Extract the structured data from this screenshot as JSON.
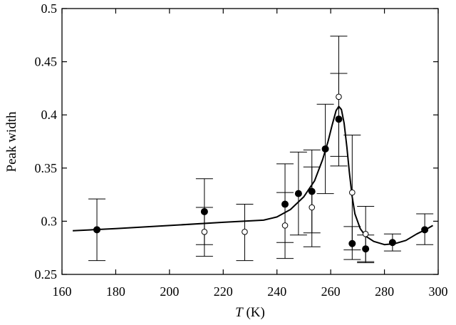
{
  "chart_data": {
    "type": "scatter",
    "title": "",
    "xlabel": {
      "var": "T",
      "unit": " (K)"
    },
    "ylabel": "Peak width",
    "xlim": [
      160,
      300
    ],
    "ylim": [
      0.25,
      0.5
    ],
    "x_ticks": [
      160,
      180,
      200,
      220,
      240,
      260,
      280,
      300
    ],
    "y_ticks": [
      0.25,
      0.3,
      0.35,
      0.4,
      0.45,
      0.5
    ],
    "x_tick_labels": [
      "160",
      "180",
      "200",
      "220",
      "240",
      "260",
      "280",
      "300"
    ],
    "y_tick_labels": [
      "0.25",
      "0.3",
      "0.35",
      "0.4",
      "0.45",
      "0.5"
    ],
    "grid": false,
    "legend": null,
    "colors": {
      "ink": "#000000",
      "background": "#ffffff"
    },
    "series": [
      {
        "marker": "filled-circle",
        "points": [
          {
            "x": 173,
            "y": 0.292,
            "yerr_low": 0.263,
            "yerr_high": 0.321
          },
          {
            "x": 213,
            "y": 0.309,
            "yerr_low": 0.278,
            "yerr_high": 0.34
          },
          {
            "x": 243,
            "y": 0.316,
            "yerr_low": 0.28,
            "yerr_high": 0.354
          },
          {
            "x": 248,
            "y": 0.326,
            "yerr_low": 0.287,
            "yerr_high": 0.365
          },
          {
            "x": 253,
            "y": 0.328,
            "yerr_low": 0.289,
            "yerr_high": 0.367
          },
          {
            "x": 258,
            "y": 0.368,
            "yerr_low": 0.326,
            "yerr_high": 0.41
          },
          {
            "x": 263,
            "y": 0.396,
            "yerr_low": 0.352,
            "yerr_high": 0.439
          },
          {
            "x": 268,
            "y": 0.279,
            "yerr_low": 0.264,
            "yerr_high": 0.295
          },
          {
            "x": 273,
            "y": 0.274,
            "yerr_low": 0.261,
            "yerr_high": 0.287
          },
          {
            "x": 283,
            "y": 0.28,
            "yerr_low": 0.272,
            "yerr_high": 0.288
          },
          {
            "x": 295,
            "y": 0.292,
            "yerr_low": 0.278,
            "yerr_high": 0.307
          }
        ]
      },
      {
        "marker": "open-circle",
        "points": [
          {
            "x": 213,
            "y": 0.29,
            "yerr_low": 0.267,
            "yerr_high": 0.313
          },
          {
            "x": 228,
            "y": 0.29,
            "yerr_low": 0.263,
            "yerr_high": 0.316
          },
          {
            "x": 243,
            "y": 0.296,
            "yerr_low": 0.265,
            "yerr_high": 0.327
          },
          {
            "x": 253,
            "y": 0.313,
            "yerr_low": 0.276,
            "yerr_high": 0.351
          },
          {
            "x": 263,
            "y": 0.417,
            "yerr_low": 0.361,
            "yerr_high": 0.474
          },
          {
            "x": 268,
            "y": 0.327,
            "yerr_low": 0.273,
            "yerr_high": 0.381
          },
          {
            "x": 273,
            "y": 0.288,
            "yerr_low": 0.262,
            "yerr_high": 0.314
          }
        ]
      }
    ],
    "fit_curve": {
      "points": [
        [
          164,
          0.291
        ],
        [
          180,
          0.293
        ],
        [
          200,
          0.296
        ],
        [
          220,
          0.299
        ],
        [
          235,
          0.301
        ],
        [
          240,
          0.304
        ],
        [
          245,
          0.311
        ],
        [
          250,
          0.323
        ],
        [
          254,
          0.338
        ],
        [
          257,
          0.358
        ],
        [
          259,
          0.375
        ],
        [
          260.5,
          0.39
        ],
        [
          262,
          0.404
        ],
        [
          263,
          0.408
        ],
        [
          264,
          0.405
        ],
        [
          265,
          0.392
        ],
        [
          266,
          0.37
        ],
        [
          267,
          0.345
        ],
        [
          268,
          0.323
        ],
        [
          269,
          0.307
        ],
        [
          271,
          0.293
        ],
        [
          273,
          0.286
        ],
        [
          276,
          0.281
        ],
        [
          280,
          0.278
        ],
        [
          284,
          0.279
        ],
        [
          288,
          0.282
        ],
        [
          292,
          0.288
        ],
        [
          296,
          0.293
        ],
        [
          298,
          0.296
        ]
      ]
    }
  }
}
